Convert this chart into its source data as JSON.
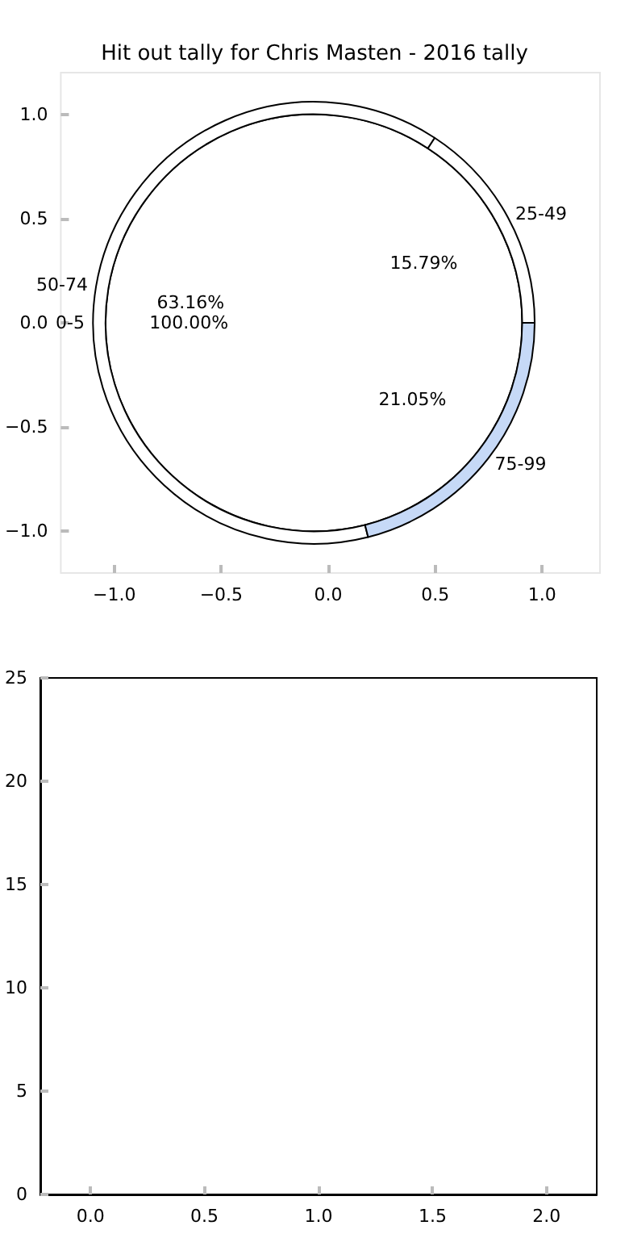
{
  "chart_data": [
    {
      "type": "pie",
      "title": "Hit out tally for Chris Masten - 2016 tally",
      "categories": [
        "0-5"
      ],
      "values": [
        100
      ],
      "colors": [
        "#ffffff"
      ],
      "value_labels": [
        "100.00%"
      ],
      "legend": false
    },
    {
      "type": "donut",
      "categories": [
        "25-49",
        "50-74",
        "75-99"
      ],
      "values": [
        15.79,
        63.16,
        21.05
      ],
      "colors": [
        "#ffffff",
        "#ffffff",
        "#c6d9f7"
      ],
      "value_labels": [
        "15.79%",
        "63.16%",
        "21.05%"
      ],
      "legend": false
    },
    {
      "type": "scatter",
      "xlim": [
        -1.25,
        1.27
      ],
      "ylim": [
        -1.2,
        1.2
      ],
      "xticks": [
        {
          "value": -1,
          "label": "−1.0"
        },
        {
          "value": -0.5,
          "label": "−0.5"
        },
        {
          "value": 0,
          "label": "0.0"
        },
        {
          "value": 0.5,
          "label": "0.5"
        },
        {
          "value": 1,
          "label": "1.0"
        }
      ],
      "yticks": [
        {
          "value": -1,
          "label": "−1.0"
        },
        {
          "value": -0.5,
          "label": "−0.5"
        },
        {
          "value": 0,
          "label": "0.0"
        },
        {
          "value": 0.5,
          "label": "0.5"
        },
        {
          "value": 1,
          "label": "1.0"
        }
      ],
      "grid": false,
      "legend": false
    },
    {
      "type": "scatter",
      "xlim": [
        -0.22,
        2.22
      ],
      "ylim": [
        0,
        25
      ],
      "xticks": [
        {
          "value": 0,
          "label": "0.0"
        },
        {
          "value": 0.5,
          "label": "0.5"
        },
        {
          "value": 1,
          "label": "1.0"
        },
        {
          "value": 1.5,
          "label": "1.5"
        },
        {
          "value": 2,
          "label": "2.0"
        }
      ],
      "yticks": [
        0,
        5,
        10,
        15,
        20,
        25
      ],
      "grid": false,
      "legend": false
    }
  ]
}
